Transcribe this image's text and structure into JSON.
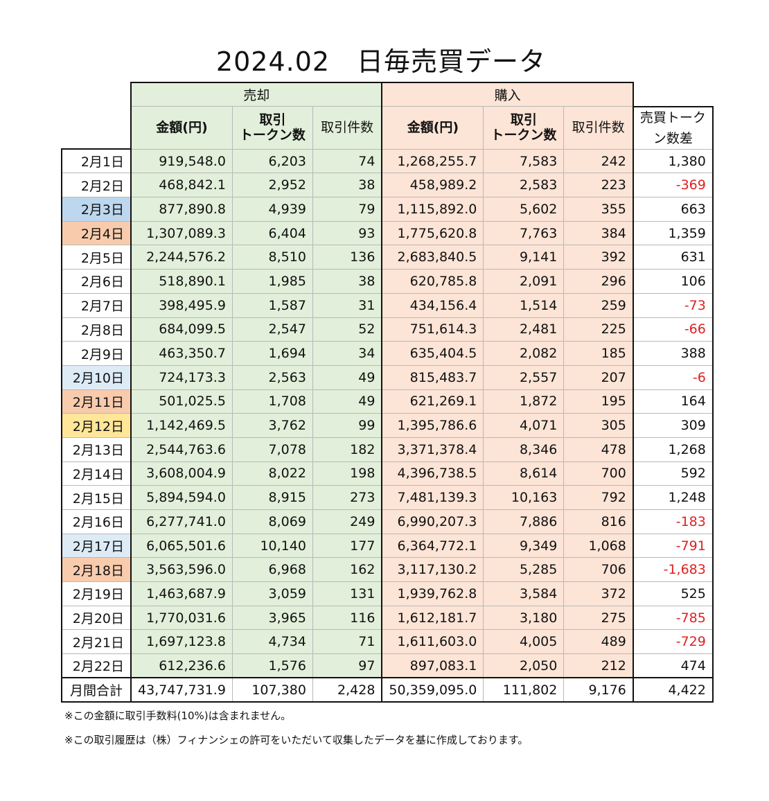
{
  "title": "2024.02　日毎売買データ",
  "headers": {
    "sell_group": "売却",
    "buy_group": "購入",
    "amount": "金額(円)",
    "tokens_line1": "取引",
    "tokens_line2": "トークン数",
    "count": "取引件数",
    "diff_line1": "売買トーク",
    "diff_line2": "ン数差"
  },
  "rows": [
    {
      "date": "2月1日",
      "sell_amount": "919,548.0",
      "sell_tokens": "6,203",
      "sell_count": "74",
      "buy_amount": "1,268,255.7",
      "buy_tokens": "7,583",
      "buy_count": "242",
      "diff": "1,380",
      "neg": false,
      "day": ""
    },
    {
      "date": "2月2日",
      "sell_amount": "468,842.1",
      "sell_tokens": "2,952",
      "sell_count": "38",
      "buy_amount": "458,989.2",
      "buy_tokens": "2,583",
      "buy_count": "223",
      "diff": "-369",
      "neg": true,
      "day": ""
    },
    {
      "date": "2月3日",
      "sell_amount": "877,890.8",
      "sell_tokens": "4,939",
      "sell_count": "79",
      "buy_amount": "1,115,892.0",
      "buy_tokens": "5,602",
      "buy_count": "355",
      "diff": "663",
      "neg": false,
      "day": "sat"
    },
    {
      "date": "2月4日",
      "sell_amount": "1,307,089.3",
      "sell_tokens": "6,404",
      "sell_count": "93",
      "buy_amount": "1,775,620.8",
      "buy_tokens": "7,763",
      "buy_count": "384",
      "diff": "1,359",
      "neg": false,
      "day": "sun"
    },
    {
      "date": "2月5日",
      "sell_amount": "2,244,576.2",
      "sell_tokens": "8,510",
      "sell_count": "136",
      "buy_amount": "2,683,840.5",
      "buy_tokens": "9,141",
      "buy_count": "392",
      "diff": "631",
      "neg": false,
      "day": ""
    },
    {
      "date": "2月6日",
      "sell_amount": "518,890.1",
      "sell_tokens": "1,985",
      "sell_count": "38",
      "buy_amount": "620,785.8",
      "buy_tokens": "2,091",
      "buy_count": "296",
      "diff": "106",
      "neg": false,
      "day": ""
    },
    {
      "date": "2月7日",
      "sell_amount": "398,495.9",
      "sell_tokens": "1,587",
      "sell_count": "31",
      "buy_amount": "434,156.4",
      "buy_tokens": "1,514",
      "buy_count": "259",
      "diff": "-73",
      "neg": true,
      "day": ""
    },
    {
      "date": "2月8日",
      "sell_amount": "684,099.5",
      "sell_tokens": "2,547",
      "sell_count": "52",
      "buy_amount": "751,614.3",
      "buy_tokens": "2,481",
      "buy_count": "225",
      "diff": "-66",
      "neg": true,
      "day": ""
    },
    {
      "date": "2月9日",
      "sell_amount": "463,350.7",
      "sell_tokens": "1,694",
      "sell_count": "34",
      "buy_amount": "635,404.5",
      "buy_tokens": "2,082",
      "buy_count": "185",
      "diff": "388",
      "neg": false,
      "day": ""
    },
    {
      "date": "2月10日",
      "sell_amount": "724,173.3",
      "sell_tokens": "2,563",
      "sell_count": "49",
      "buy_amount": "815,483.7",
      "buy_tokens": "2,557",
      "buy_count": "207",
      "diff": "-6",
      "neg": true,
      "day": "sat-light"
    },
    {
      "date": "2月11日",
      "sell_amount": "501,025.5",
      "sell_tokens": "1,708",
      "sell_count": "49",
      "buy_amount": "621,269.1",
      "buy_tokens": "1,872",
      "buy_count": "195",
      "diff": "164",
      "neg": false,
      "day": "sun"
    },
    {
      "date": "2月12日",
      "sell_amount": "1,142,469.5",
      "sell_tokens": "3,762",
      "sell_count": "99",
      "buy_amount": "1,395,786.6",
      "buy_tokens": "4,071",
      "buy_count": "305",
      "diff": "309",
      "neg": false,
      "day": "hol"
    },
    {
      "date": "2月13日",
      "sell_amount": "2,544,763.6",
      "sell_tokens": "7,078",
      "sell_count": "182",
      "buy_amount": "3,371,378.4",
      "buy_tokens": "8,346",
      "buy_count": "478",
      "diff": "1,268",
      "neg": false,
      "day": ""
    },
    {
      "date": "2月14日",
      "sell_amount": "3,608,004.9",
      "sell_tokens": "8,022",
      "sell_count": "198",
      "buy_amount": "4,396,738.5",
      "buy_tokens": "8,614",
      "buy_count": "700",
      "diff": "592",
      "neg": false,
      "day": ""
    },
    {
      "date": "2月15日",
      "sell_amount": "5,894,594.0",
      "sell_tokens": "8,915",
      "sell_count": "273",
      "buy_amount": "7,481,139.3",
      "buy_tokens": "10,163",
      "buy_count": "792",
      "diff": "1,248",
      "neg": false,
      "day": ""
    },
    {
      "date": "2月16日",
      "sell_amount": "6,277,741.0",
      "sell_tokens": "8,069",
      "sell_count": "249",
      "buy_amount": "6,990,207.3",
      "buy_tokens": "7,886",
      "buy_count": "816",
      "diff": "-183",
      "neg": true,
      "day": ""
    },
    {
      "date": "2月17日",
      "sell_amount": "6,065,501.6",
      "sell_tokens": "10,140",
      "sell_count": "177",
      "buy_amount": "6,364,772.1",
      "buy_tokens": "9,349",
      "buy_count": "1,068",
      "diff": "-791",
      "neg": true,
      "day": "sat-light"
    },
    {
      "date": "2月18日",
      "sell_amount": "3,563,596.0",
      "sell_tokens": "6,968",
      "sell_count": "162",
      "buy_amount": "3,117,130.2",
      "buy_tokens": "5,285",
      "buy_count": "706",
      "diff": "-1,683",
      "neg": true,
      "day": "sun"
    },
    {
      "date": "2月19日",
      "sell_amount": "1,463,687.9",
      "sell_tokens": "3,059",
      "sell_count": "131",
      "buy_amount": "1,939,762.8",
      "buy_tokens": "3,584",
      "buy_count": "372",
      "diff": "525",
      "neg": false,
      "day": ""
    },
    {
      "date": "2月20日",
      "sell_amount": "1,770,031.6",
      "sell_tokens": "3,965",
      "sell_count": "116",
      "buy_amount": "1,612,181.7",
      "buy_tokens": "3,180",
      "buy_count": "275",
      "diff": "-785",
      "neg": true,
      "day": ""
    },
    {
      "date": "2月21日",
      "sell_amount": "1,697,123.8",
      "sell_tokens": "4,734",
      "sell_count": "71",
      "buy_amount": "1,611,603.0",
      "buy_tokens": "4,005",
      "buy_count": "489",
      "diff": "-729",
      "neg": true,
      "day": ""
    },
    {
      "date": "2月22日",
      "sell_amount": "612,236.6",
      "sell_tokens": "1,576",
      "sell_count": "97",
      "buy_amount": "897,083.1",
      "buy_tokens": "2,050",
      "buy_count": "212",
      "diff": "474",
      "neg": false,
      "day": ""
    }
  ],
  "total": {
    "label": "月間合計",
    "sell_amount": "43,747,731.9",
    "sell_tokens": "107,380",
    "sell_count": "2,428",
    "buy_amount": "50,359,095.0",
    "buy_tokens": "111,802",
    "buy_count": "9,176",
    "diff": "4,422"
  },
  "notes": [
    "※この金額に取引手数料(10%)は含まれません。",
    "※この取引履歴は（株）フィナンシェの許可をいただいて収集したデータを基に作成しております。"
  ],
  "colors": {
    "sell_bg": "#e2efda",
    "buy_bg": "#fce4d6",
    "saturday": "#bdd7ee",
    "saturday_light": "#ddebf7",
    "sunday": "#f8cbad",
    "holiday": "#ffe699",
    "negative": "#e02020"
  }
}
